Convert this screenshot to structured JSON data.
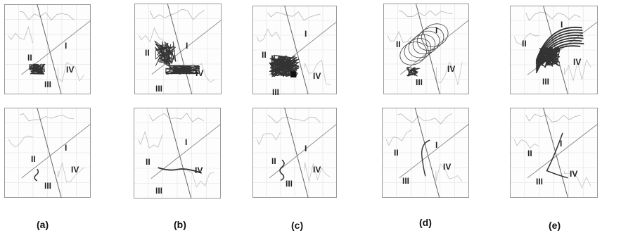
{
  "figure": {
    "columns": [
      {
        "caption": "(a)",
        "panels": [
          {
            "row": "top",
            "labels": {
              "q1": "I",
              "q2": "II",
              "q3": "III",
              "q4": "IV"
            },
            "plot": "cluster-small"
          },
          {
            "row": "bottom",
            "labels": {
              "q1": "I",
              "q2": "II",
              "q3": "III",
              "q4": "IV"
            },
            "plot": "track-short"
          }
        ]
      },
      {
        "caption": "(b)",
        "panels": [
          {
            "row": "top",
            "labels": {
              "q1": "I",
              "q2": "II",
              "q3": "III",
              "q4": "IV"
            },
            "plot": "cluster-wide"
          },
          {
            "row": "bottom",
            "labels": {
              "q1": "I",
              "q2": "II",
              "q3": "III",
              "q4": "IV"
            },
            "plot": "track-horizontal"
          }
        ]
      },
      {
        "caption": "(c)",
        "panels": [
          {
            "row": "top",
            "labels": {
              "q1": "I",
              "q2": "II",
              "q3": "III",
              "q4": "IV"
            },
            "plot": "cluster-dense"
          },
          {
            "row": "bottom",
            "labels": {
              "q1": "I",
              "q2": "II",
              "q3": "III",
              "q4": "IV"
            },
            "plot": "track-wiggle"
          }
        ]
      },
      {
        "caption": "(d)",
        "panels": [
          {
            "row": "top",
            "labels": {
              "q1": "I",
              "q2": "II",
              "q3": "III",
              "q4": "IV"
            },
            "plot": "loops-north"
          },
          {
            "row": "bottom",
            "labels": {
              "q1": "I",
              "q2": "II",
              "q3": "III",
              "q4": "IV"
            },
            "plot": "track-vertical"
          }
        ]
      },
      {
        "caption": "(e)",
        "panels": [
          {
            "row": "top",
            "labels": {
              "q1": "I",
              "q2": "II",
              "q3": "III",
              "q4": "IV"
            },
            "plot": "arc-band"
          },
          {
            "row": "bottom",
            "labels": {
              "q1": "I",
              "q2": "II",
              "q3": "III",
              "q4": "IV"
            },
            "plot": "track-curve"
          }
        ]
      }
    ]
  }
}
